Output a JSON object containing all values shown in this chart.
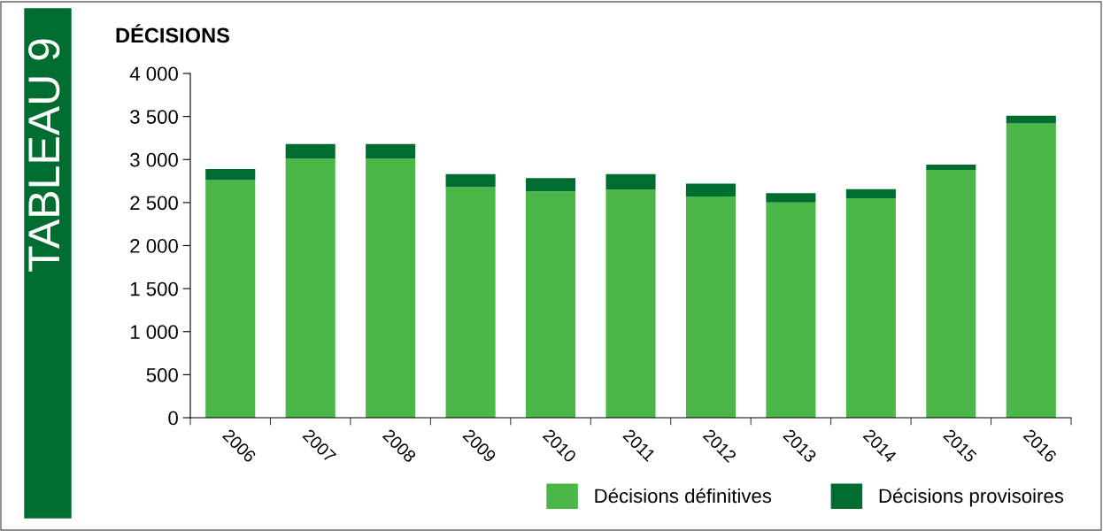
{
  "chart_data": {
    "type": "bar",
    "title": "DÉCISIONS",
    "annotations": [
      "TABLEAU 9"
    ],
    "categories": [
      "2006",
      "2007",
      "2008",
      "2009",
      "2010",
      "2011",
      "2012",
      "2013",
      "2014",
      "2015",
      "2016"
    ],
    "stacked": true,
    "series": [
      {
        "name": "Décisions définitives",
        "color": "#4bb748",
        "values": [
          2760,
          3010,
          3010,
          2680,
          2630,
          2650,
          2570,
          2500,
          2550,
          2880,
          3420
        ]
      },
      {
        "name": "Décisions provisoires",
        "color": "#006d30",
        "values": [
          130,
          170,
          170,
          150,
          155,
          180,
          150,
          110,
          105,
          60,
          90
        ]
      }
    ],
    "ylim": [
      0,
      4000
    ],
    "yticks": [
      0,
      500,
      {
        "value": 1000,
        "label": "1 000"
      },
      {
        "value": 1500,
        "label": "1 500"
      },
      {
        "value": 2000,
        "label": "2 000"
      },
      {
        "value": 2500,
        "label": "2 500"
      },
      {
        "value": 3000,
        "label": "3 000"
      },
      {
        "value": 3500,
        "label": "3 500"
      },
      {
        "value": 4000,
        "label": "4 000"
      }
    ],
    "grid": false,
    "legend": "bottom"
  }
}
